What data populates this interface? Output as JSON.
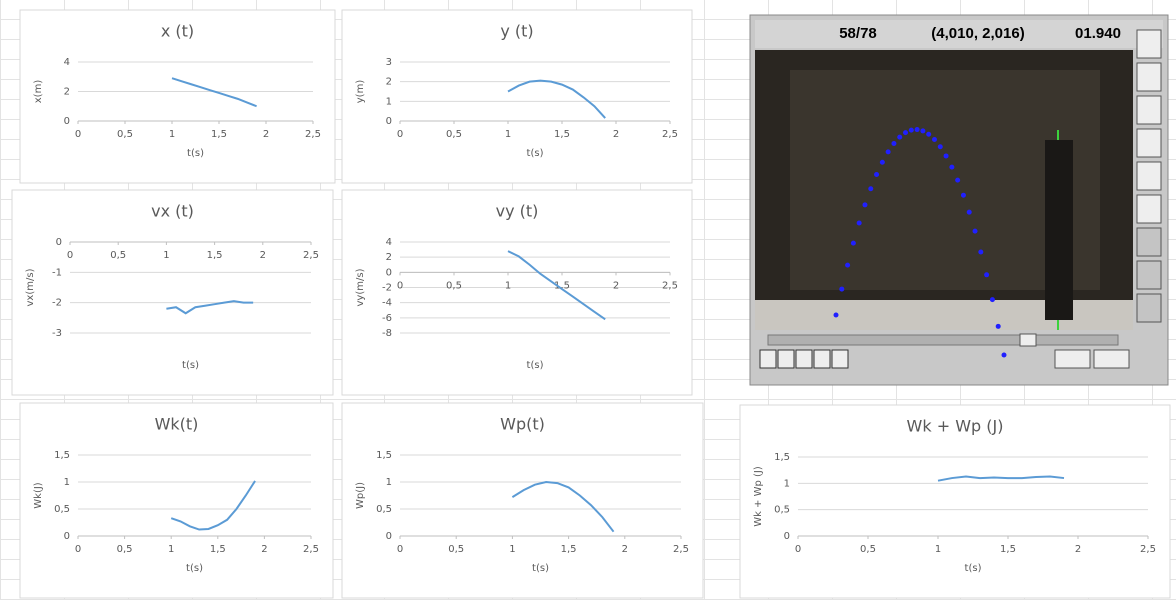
{
  "chart_data": [
    {
      "type": "line",
      "title": "x (t)",
      "x_label": "t(s)",
      "y_label": "x(m)",
      "x": [
        1.0,
        1.1,
        1.2,
        1.3,
        1.4,
        1.5,
        1.6,
        1.7,
        1.8,
        1.9
      ],
      "values": [
        2.9,
        2.7,
        2.5,
        2.3,
        2.1,
        1.9,
        1.7,
        1.5,
        1.25,
        1.0
      ],
      "color": "#5b9bd5",
      "xlim": [
        0,
        2.5
      ],
      "xticks": [
        0,
        {
          "value": 0.5,
          "label": "0,5"
        },
        1,
        {
          "value": 1.5,
          "label": "1,5"
        },
        2,
        {
          "value": 2.5,
          "label": "2,5"
        }
      ],
      "ylim": [
        0,
        4
      ],
      "yticks": [
        0,
        2,
        4
      ],
      "grid": true
    },
    {
      "type": "line",
      "title": "y (t)",
      "x_label": "t(s)",
      "y_label": "y(m)",
      "x": [
        1.0,
        1.1,
        1.2,
        1.3,
        1.4,
        1.5,
        1.6,
        1.7,
        1.8,
        1.9
      ],
      "values": [
        1.5,
        1.8,
        2.0,
        2.05,
        2.0,
        1.85,
        1.6,
        1.2,
        0.75,
        0.15
      ],
      "color": "#5b9bd5",
      "xlim": [
        0,
        2.5
      ],
      "xticks": [
        0,
        {
          "value": 0.5,
          "label": "0,5"
        },
        1,
        {
          "value": 1.5,
          "label": "1,5"
        },
        2,
        {
          "value": 2.5,
          "label": "2,5"
        }
      ],
      "ylim": [
        0,
        3
      ],
      "yticks": [
        0,
        1,
        2,
        3
      ],
      "grid": true
    },
    {
      "type": "line",
      "title": "vx (t)",
      "x_label": "t(s)",
      "y_label": "vx(m/s)",
      "x": [
        1.0,
        1.1,
        1.2,
        1.3,
        1.4,
        1.5,
        1.6,
        1.7,
        1.8,
        1.9
      ],
      "values": [
        -2.2,
        -2.15,
        -2.35,
        -2.15,
        -2.1,
        -2.05,
        -2.0,
        -1.95,
        -2.0,
        -2.0
      ],
      "color": "#5b9bd5",
      "xlim": [
        0,
        2.5
      ],
      "xticks": [
        0,
        {
          "value": 0.5,
          "label": "0,5"
        },
        1,
        {
          "value": 1.5,
          "label": "1,5"
        },
        2,
        {
          "value": 2.5,
          "label": "2,5"
        }
      ],
      "ylim": [
        -3,
        0
      ],
      "yticks": [
        0,
        -1,
        -2,
        -3
      ],
      "grid": true
    },
    {
      "type": "line",
      "title": "vy (t)",
      "x_label": "t(s)",
      "y_label": "vy(m/s)",
      "x": [
        1.0,
        1.1,
        1.2,
        1.3,
        1.4,
        1.5,
        1.6,
        1.7,
        1.8,
        1.9
      ],
      "values": [
        2.8,
        2.1,
        1.0,
        -0.2,
        -1.2,
        -2.2,
        -3.2,
        -4.2,
        -5.2,
        -6.2
      ],
      "color": "#5b9bd5",
      "xlim": [
        0,
        2.5
      ],
      "xticks": [
        0,
        {
          "value": 0.5,
          "label": "0,5"
        },
        1,
        {
          "value": 1.5,
          "label": "1,5"
        },
        2,
        {
          "value": 2.5,
          "label": "2,5"
        }
      ],
      "ylim": [
        -8,
        4
      ],
      "yticks": [
        4,
        2,
        0,
        -2,
        -4,
        -6,
        -8
      ],
      "grid": true
    },
    {
      "type": "line",
      "title": "Wk(t)",
      "x_label": "t(s)",
      "y_label": "Wk(J)",
      "x": [
        1.0,
        1.1,
        1.2,
        1.3,
        1.4,
        1.5,
        1.6,
        1.7,
        1.8,
        1.9
      ],
      "values": [
        0.33,
        0.27,
        0.18,
        0.12,
        0.13,
        0.2,
        0.3,
        0.5,
        0.75,
        1.02
      ],
      "color": "#5b9bd5",
      "xlim": [
        0,
        2.5
      ],
      "xticks": [
        0,
        {
          "value": 0.5,
          "label": "0,5"
        },
        1,
        {
          "value": 1.5,
          "label": "1,5"
        },
        2,
        {
          "value": 2.5,
          "label": "2,5"
        }
      ],
      "ylim": [
        0,
        1.5
      ],
      "yticks": [
        0,
        {
          "value": 0.5,
          "label": "0,5"
        },
        1,
        {
          "value": 1.5,
          "label": "1,5"
        }
      ],
      "grid": true
    },
    {
      "type": "line",
      "title": "Wp(t)",
      "x_label": "t(s)",
      "y_label": "Wp(J)",
      "x": [
        1.0,
        1.1,
        1.2,
        1.3,
        1.4,
        1.5,
        1.6,
        1.7,
        1.8,
        1.9
      ],
      "values": [
        0.72,
        0.85,
        0.95,
        1.0,
        0.98,
        0.9,
        0.75,
        0.57,
        0.35,
        0.08
      ],
      "color": "#5b9bd5",
      "xlim": [
        0,
        2.5
      ],
      "xticks": [
        0,
        {
          "value": 0.5,
          "label": "0,5"
        },
        1,
        {
          "value": 1.5,
          "label": "1,5"
        },
        2,
        {
          "value": 2.5,
          "label": "2,5"
        }
      ],
      "ylim": [
        0,
        1.5
      ],
      "yticks": [
        0,
        {
          "value": 0.5,
          "label": "0,5"
        },
        1,
        {
          "value": 1.5,
          "label": "1,5"
        }
      ],
      "grid": true
    },
    {
      "type": "line",
      "title": "Wk + Wp (J)",
      "x_label": "t(s)",
      "y_label": "Wk + Wp (J)",
      "x": [
        1.0,
        1.1,
        1.2,
        1.3,
        1.4,
        1.5,
        1.6,
        1.7,
        1.8,
        1.9
      ],
      "values": [
        1.05,
        1.1,
        1.13,
        1.1,
        1.11,
        1.1,
        1.1,
        1.12,
        1.13,
        1.1
      ],
      "color": "#5b9bd5",
      "xlim": [
        0,
        2.5
      ],
      "xticks": [
        0,
        {
          "value": 0.5,
          "label": "0,5"
        },
        1,
        {
          "value": 1.5,
          "label": "1,5"
        },
        2,
        {
          "value": 2.5,
          "label": "2,5"
        }
      ],
      "ylim": [
        0,
        1.5
      ],
      "yticks": [
        0,
        {
          "value": 0.5,
          "label": "0,5"
        },
        1,
        {
          "value": 1.5,
          "label": "1,5"
        }
      ],
      "grid": true
    }
  ],
  "tracker": {
    "frame": "58/78",
    "coords": "(4,010, 2,016)",
    "time": "01.940"
  }
}
